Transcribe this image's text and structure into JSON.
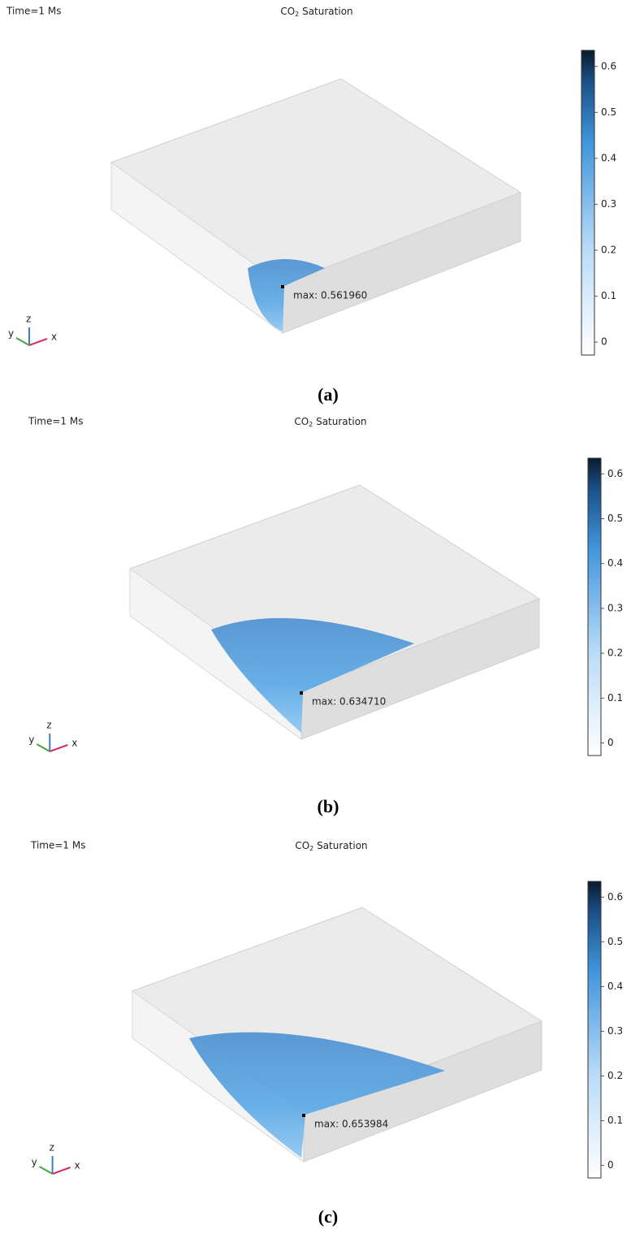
{
  "panels": [
    {
      "time": "Time=1 Ms",
      "title": {
        "main": "CO",
        "sub": "2",
        "rest": " Saturation"
      },
      "max_label": "max: 0.561960",
      "triad": {
        "x": "x",
        "y": "y",
        "z": "z"
      },
      "colorbar": {
        "clim": [
          -0.028,
          0.635
        ],
        "ticks": [
          0,
          0.1,
          0.2,
          0.3,
          0.4,
          0.5,
          0.6
        ]
      },
      "caption": "(a)"
    },
    {
      "time": "Time=1 Ms",
      "title": {
        "main": "CO",
        "sub": "2",
        "rest": " Saturation"
      },
      "max_label": "max: 0.634710",
      "triad": {
        "x": "x",
        "y": "y",
        "z": "z"
      },
      "colorbar": {
        "clim": [
          -0.028,
          0.635
        ],
        "ticks": [
          0,
          0.1,
          0.2,
          0.3,
          0.4,
          0.5,
          0.6
        ]
      },
      "caption": "(b)"
    },
    {
      "time": "Time=1 Ms",
      "title": {
        "main": "CO",
        "sub": "2",
        "rest": " Saturation"
      },
      "max_label": "max: 0.653984",
      "triad": {
        "x": "x",
        "y": "y",
        "z": "z"
      },
      "colorbar": {
        "clim": [
          -0.028,
          0.635
        ],
        "ticks": [
          0,
          0.1,
          0.2,
          0.3,
          0.4,
          0.5,
          0.6
        ]
      },
      "caption": "(c)"
    }
  ]
}
